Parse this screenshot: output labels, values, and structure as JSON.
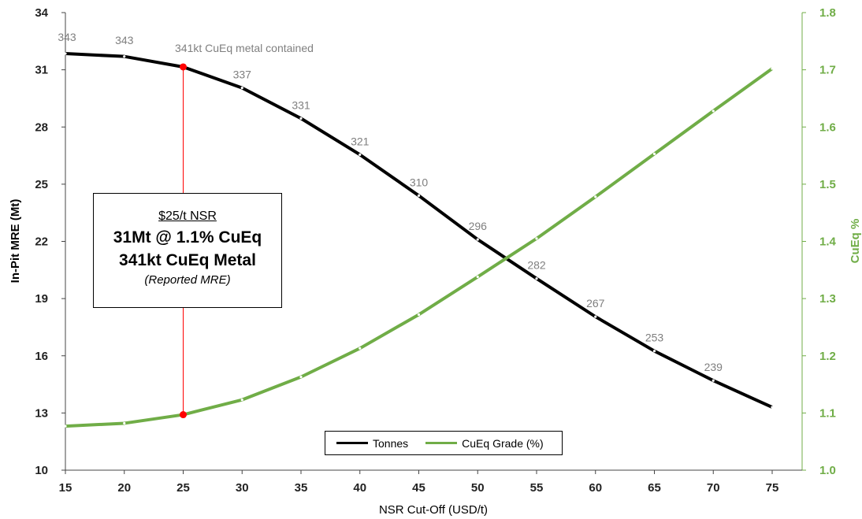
{
  "chart_data": {
    "type": "line",
    "xlabel": "NSR Cut-Off (USD/t)",
    "ylabel_left": "In-Pit MRE (Mt)",
    "ylabel_right": "CuEq %",
    "x": [
      15,
      20,
      25,
      30,
      35,
      40,
      45,
      50,
      55,
      60,
      65,
      70,
      75
    ],
    "xlim": [
      15,
      75
    ],
    "ylim_left": [
      10,
      34
    ],
    "ylim_right": [
      1.0,
      1.8
    ],
    "yticks_left": [
      10,
      13,
      16,
      19,
      22,
      25,
      28,
      31,
      34
    ],
    "yticks_right": [
      "1.0",
      "1.1",
      "1.2",
      "1.3",
      "1.4",
      "1.5",
      "1.6",
      "1.7",
      "1.8"
    ],
    "series": [
      {
        "name": "Tonnes",
        "axis": "left",
        "color": "#000000",
        "values": [
          31.85,
          31.7,
          31.15,
          30.05,
          28.45,
          26.55,
          24.4,
          22.1,
          20.05,
          18.05,
          16.25,
          14.7,
          13.3
        ],
        "data_labels": [
          "343",
          "343",
          "",
          "337",
          "331",
          "321",
          "310",
          "296",
          "282",
          "267",
          "253",
          "239",
          ""
        ]
      },
      {
        "name": "CuEq Grade (%)",
        "axis": "right",
        "color": "#70ad47",
        "values": [
          1.077,
          1.082,
          1.097,
          1.123,
          1.163,
          1.213,
          1.272,
          1.338,
          1.405,
          1.478,
          1.553,
          1.628,
          1.702
        ]
      }
    ],
    "highlight": {
      "x": 25,
      "tonnes": 31.15,
      "grade": 1.097,
      "label": "341kt CuEq metal contained",
      "color": "#ff0000"
    },
    "grid": false,
    "legend_position": "bottom-center"
  },
  "callout": {
    "line1": "$25/t NSR",
    "line2": "31Mt @ 1.1% CuEq",
    "line3": "341kt CuEq Metal",
    "line4": "(Reported MRE)"
  },
  "legend": {
    "tonnes": "Tonnes",
    "grade": "CuEq Grade (%)"
  },
  "colors": {
    "tonnes": "#000000",
    "grade": "#70ad47",
    "highlight": "#ff0000",
    "data_label": "#7f7f7f"
  }
}
